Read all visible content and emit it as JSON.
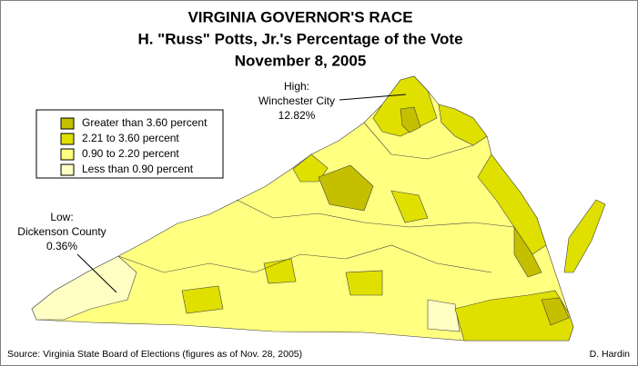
{
  "title": [
    "VIRGINIA GOVERNOR'S RACE",
    "H. \"Russ\" Potts, Jr.'s Percentage of the Vote",
    "November 8, 2005"
  ],
  "legend": [
    {
      "label": "Greater than 3.60 percent",
      "color": "#c4c000"
    },
    {
      "label": "2.21 to 3.60 percent",
      "color": "#e0e000"
    },
    {
      "label": "0.90 to 2.20 percent",
      "color": "#ffff80"
    },
    {
      "label": "Less than 0.90 percent",
      "color": "#ffffc4"
    }
  ],
  "annotations": {
    "high": [
      "High:",
      "Winchester City",
      "12.82%"
    ],
    "low": [
      "Low:",
      "Dickenson County",
      "0.36%"
    ]
  },
  "footer": {
    "source": "Source: Virginia State Board of Elections (figures as of Nov. 28, 2005)",
    "author": "D. Hardin"
  }
}
